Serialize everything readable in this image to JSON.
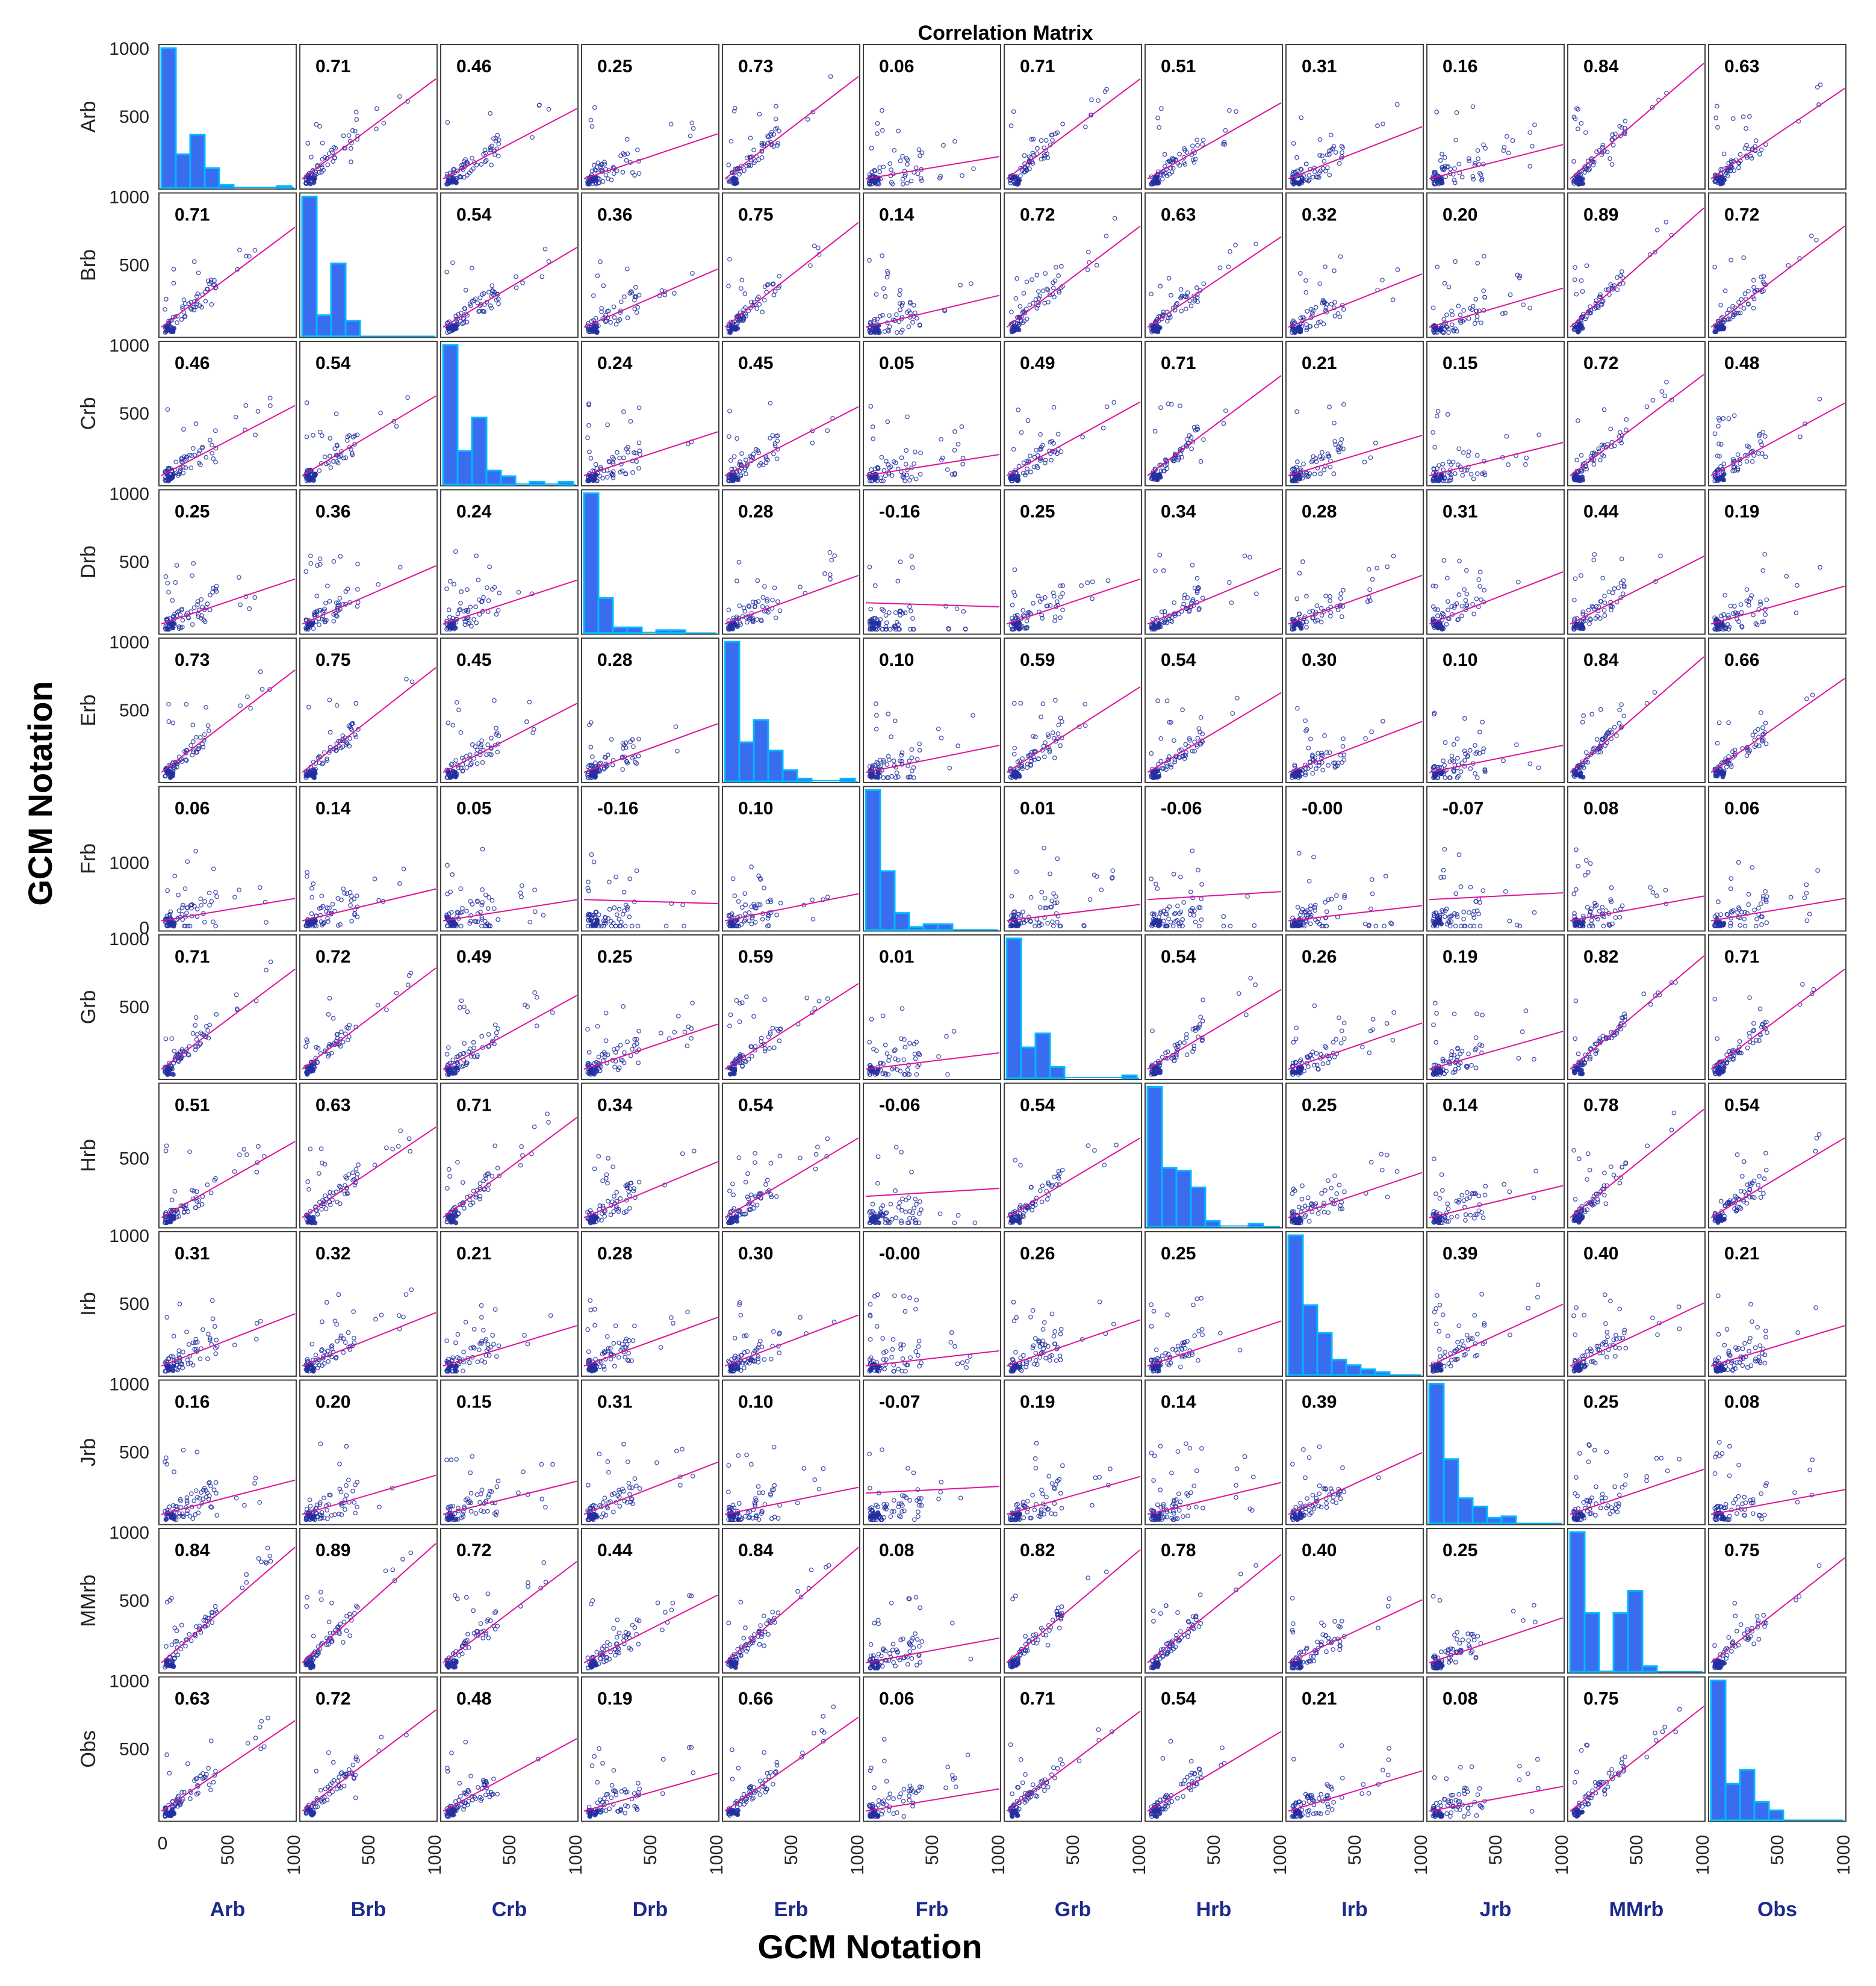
{
  "chart_data": {
    "type": "scatter-matrix",
    "title": "Correlation Matrix",
    "xlabel": "GCM Notation",
    "ylabel": "GCM Notation",
    "variables": [
      "Arb",
      "Brb",
      "Crb",
      "Drb",
      "Erb",
      "Frb",
      "Grb",
      "Hrb",
      "Irb",
      "Jrb",
      "MMrb",
      "Obs"
    ],
    "x_ticks": [
      "0",
      "500",
      "1000"
    ],
    "y_ticks": [
      [
        "500",
        "1000"
      ],
      [
        "500",
        "1000"
      ],
      [
        "500",
        "1000"
      ],
      [
        "500",
        "1000"
      ],
      [
        "500",
        "1000"
      ],
      [
        "0",
        "1000"
      ],
      [
        "500",
        "1000"
      ],
      [
        "500"
      ],
      [
        "500",
        "1000"
      ],
      [
        "500",
        "1000"
      ],
      [
        "500",
        "1000"
      ],
      [
        "500",
        "1000"
      ]
    ],
    "correlation_labels": [
      [
        "",
        "0.71",
        "0.46",
        "0.25",
        "0.73",
        "0.06",
        "0.71",
        "0.51",
        "0.31",
        "0.16",
        "0.84",
        "0.63"
      ],
      [
        "0.71",
        "",
        "0.54",
        "0.36",
        "0.75",
        "0.14",
        "0.72",
        "0.63",
        "0.32",
        "0.20",
        "0.89",
        "0.72"
      ],
      [
        "0.46",
        "0.54",
        "",
        "0.24",
        "0.45",
        "0.05",
        "0.49",
        "0.71",
        "0.21",
        "0.15",
        "0.72",
        "0.48"
      ],
      [
        "0.25",
        "0.36",
        "0.24",
        "",
        "0.28",
        "-0.16",
        "0.25",
        "0.34",
        "0.28",
        "0.31",
        "0.44",
        "0.19"
      ],
      [
        "0.73",
        "0.75",
        "0.45",
        "0.28",
        "",
        "0.10",
        "0.59",
        "0.54",
        "0.30",
        "0.10",
        "0.84",
        "0.66"
      ],
      [
        "0.06",
        "0.14",
        "0.05",
        "-0.16",
        "0.10",
        "",
        "0.01",
        "-0.06",
        "-0.00",
        "-0.07",
        "0.08",
        "0.06"
      ],
      [
        "0.71",
        "0.72",
        "0.49",
        "0.25",
        "0.59",
        "0.01",
        "",
        "0.54",
        "0.26",
        "0.19",
        "0.82",
        "0.71"
      ],
      [
        "0.51",
        "0.63",
        "0.71",
        "0.34",
        "0.54",
        "-0.06",
        "0.54",
        "",
        "0.25",
        "0.14",
        "0.78",
        "0.54"
      ],
      [
        "0.31",
        "0.32",
        "0.21",
        "0.28",
        "0.30",
        "-0.00",
        "0.26",
        "0.25",
        "",
        "0.39",
        "0.40",
        "0.21"
      ],
      [
        "0.16",
        "0.20",
        "0.15",
        "0.31",
        "0.10",
        "-0.07",
        "0.19",
        "0.14",
        "0.39",
        "",
        "0.25",
        "0.08"
      ],
      [
        "0.84",
        "0.89",
        "0.72",
        "0.44",
        "0.84",
        "0.08",
        "0.82",
        "0.78",
        "0.40",
        "0.25",
        "",
        "0.75"
      ],
      [
        "0.63",
        "0.72",
        "0.48",
        "0.19",
        "0.66",
        "0.06",
        "0.71",
        "0.54",
        "0.21",
        "0.08",
        "0.75",
        ""
      ]
    ],
    "histograms": [
      [
        1.0,
        0.24,
        0.38,
        0.14,
        0.02,
        0.0,
        0.0,
        0.0,
        0.01
      ],
      [
        1.0,
        0.15,
        0.52,
        0.11
      ],
      [
        1.0,
        0.24,
        0.48,
        0.1,
        0.06,
        0.0,
        0.02,
        0.0,
        0.02
      ],
      [
        1.0,
        0.25,
        0.04,
        0.04,
        0.0,
        0.02,
        0.02
      ],
      [
        1.0,
        0.28,
        0.44,
        0.22,
        0.08,
        0.02,
        0.0,
        0.0,
        0.02
      ],
      [
        1.0,
        0.42,
        0.12,
        0.02,
        0.04,
        0.04
      ],
      [
        1.0,
        0.22,
        0.32,
        0.08,
        0.0,
        0.0,
        0.0,
        0.0,
        0.02
      ],
      [
        1.0,
        0.42,
        0.4,
        0.28,
        0.04,
        0.0,
        0.0,
        0.02
      ],
      [
        1.0,
        0.5,
        0.3,
        0.11,
        0.07,
        0.04,
        0.02
      ],
      [
        1.0,
        0.46,
        0.18,
        0.12,
        0.04,
        0.05
      ],
      [
        1.0,
        0.42,
        0.0,
        0.42,
        0.58,
        0.04
      ],
      [
        1.0,
        0.26,
        0.36,
        0.13,
        0.07
      ]
    ]
  },
  "colors": {
    "points": "#2430a0",
    "fit_line": "#e0119c",
    "hist_fill": "#3a6cf0",
    "hist_edge": "#00b8ff",
    "frame": "#404040",
    "col_labels": "#1c2a8c"
  }
}
